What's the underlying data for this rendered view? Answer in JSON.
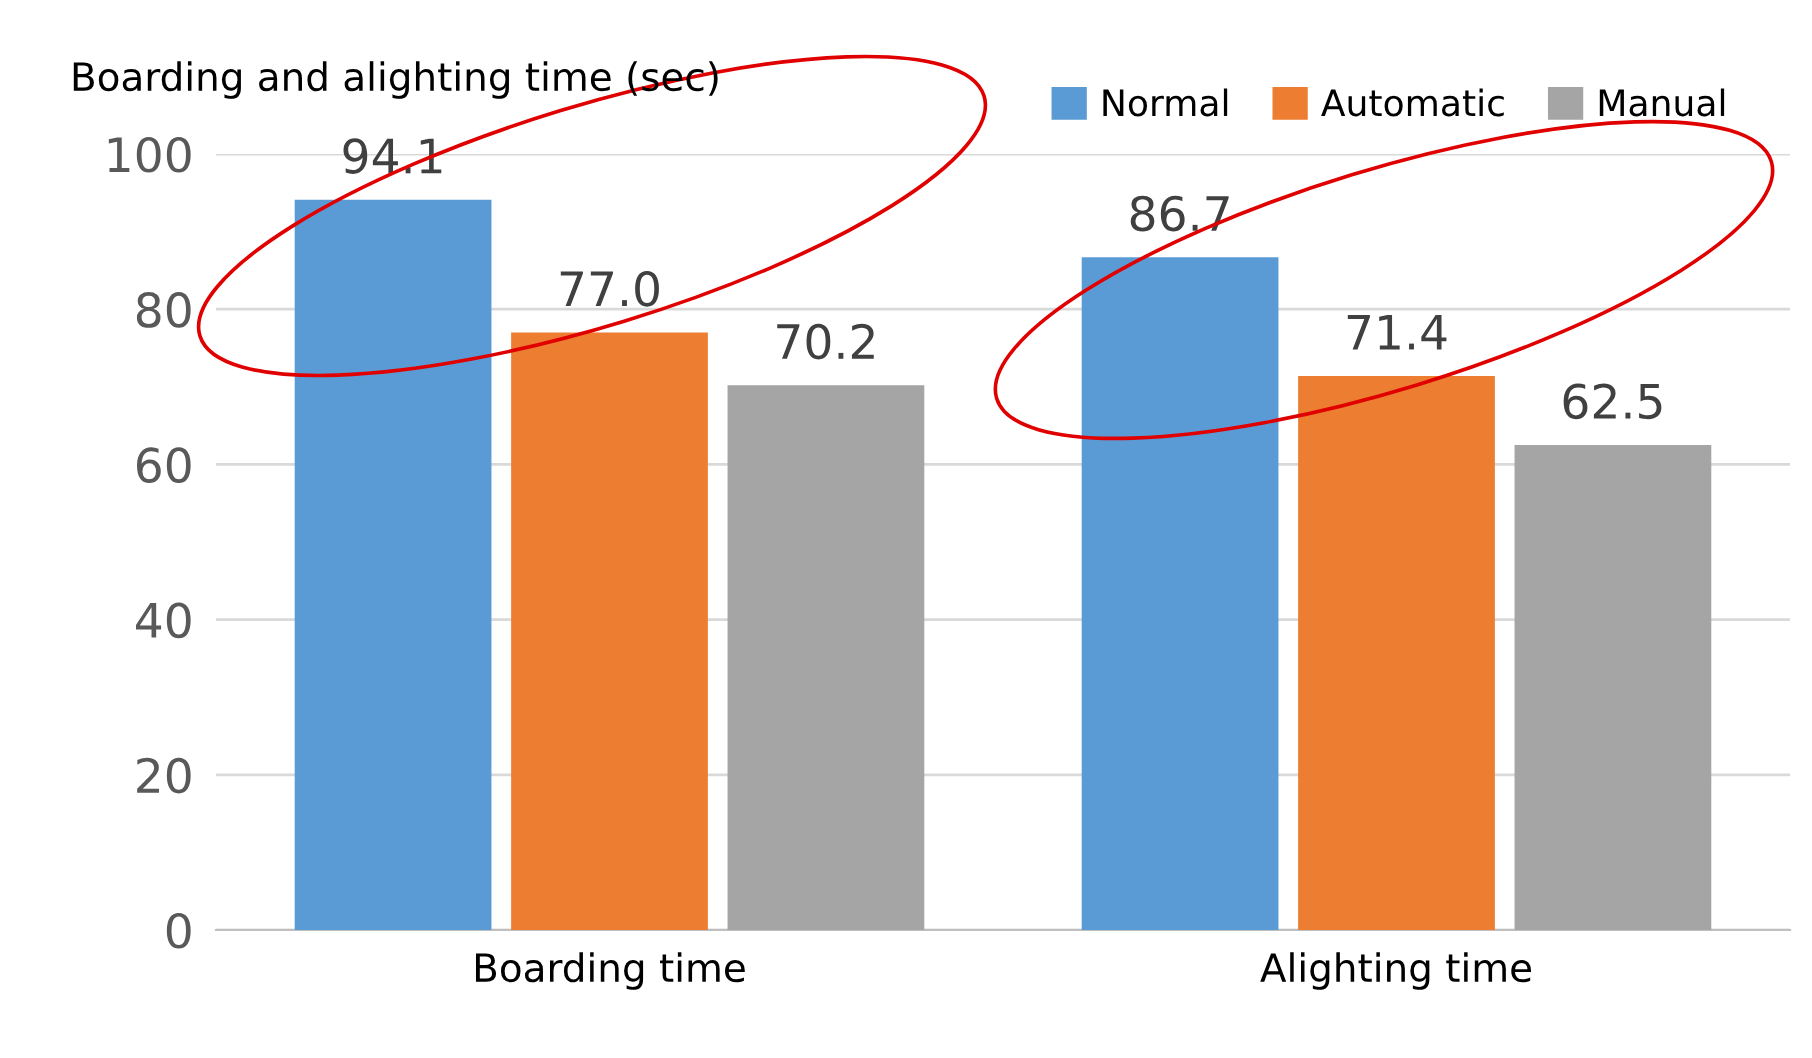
{
  "chart_data": {
    "type": "bar",
    "ylabel": "Boarding and alighting time (sec)",
    "categories": [
      "Boarding time",
      "Alighting time"
    ],
    "series": [
      {
        "name": "Normal",
        "color": "#5b9bd5",
        "values": [
          94.1,
          86.7
        ]
      },
      {
        "name": "Automatic",
        "color": "#ed7d31",
        "values": [
          77.0,
          71.4
        ]
      },
      {
        "name": "Manual",
        "color": "#a5a5a5",
        "values": [
          70.2,
          62.5
        ]
      }
    ],
    "value_labels": [
      [
        "94.1",
        "86.7"
      ],
      [
        "77.0",
        "71.4"
      ],
      [
        "70.2",
        "62.5"
      ]
    ],
    "ylim": [
      0,
      100
    ],
    "yticks": [
      0,
      20,
      40,
      60,
      80,
      100
    ],
    "grid": "y",
    "legend": "top right"
  }
}
